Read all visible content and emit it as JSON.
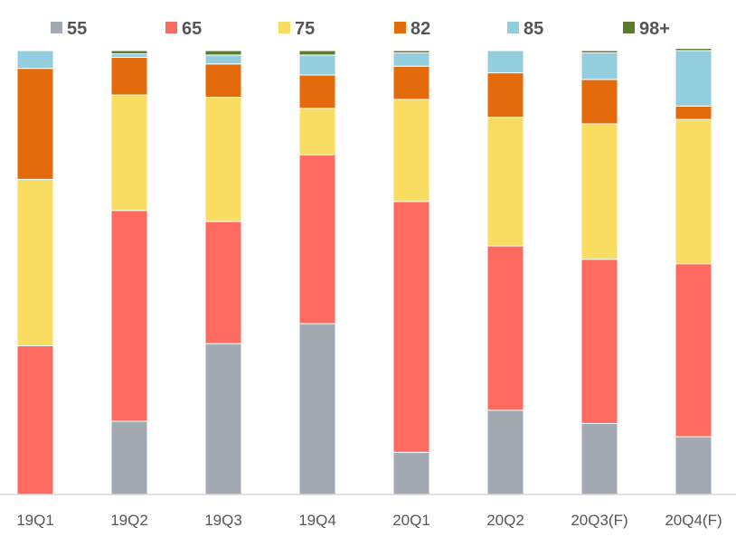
{
  "chart_data": {
    "type": "bar",
    "stacked": true,
    "normalized_percent": true,
    "title": "",
    "xlabel": "",
    "ylabel": "",
    "ylim": [
      0,
      100
    ],
    "grid": false,
    "legend_position": "top",
    "categories": [
      "19Q1",
      "19Q2",
      "19Q3",
      "19Q4",
      "20Q1",
      "20Q2",
      "20Q3(F)",
      "20Q4(F)"
    ],
    "series": [
      {
        "name": "55",
        "color": "#a2a9b0",
        "values": [
          0.0,
          16.5,
          34.0,
          38.5,
          9.5,
          19.0,
          16.0,
          13.0
        ]
      },
      {
        "name": "65",
        "color": "#ff6b60",
        "values": [
          33.5,
          47.5,
          27.5,
          38.0,
          56.5,
          37.0,
          37.0,
          39.0
        ]
      },
      {
        "name": "75",
        "color": "#f9dc62",
        "values": [
          37.5,
          26.0,
          28.0,
          10.5,
          23.0,
          29.0,
          30.5,
          32.5
        ]
      },
      {
        "name": "82",
        "color": "#e46b0b",
        "values": [
          25.0,
          8.5,
          7.5,
          7.5,
          7.5,
          10.0,
          10.0,
          3.0
        ]
      },
      {
        "name": "85",
        "color": "#92cedd",
        "values": [
          4.0,
          0.8,
          2.0,
          4.5,
          3.0,
          5.0,
          6.0,
          12.5
        ]
      },
      {
        "name": "98+",
        "color": "#5a7a2c",
        "values": [
          0.0,
          0.7,
          1.0,
          1.0,
          0.5,
          0.0,
          0.5,
          0.5
        ]
      }
    ]
  }
}
